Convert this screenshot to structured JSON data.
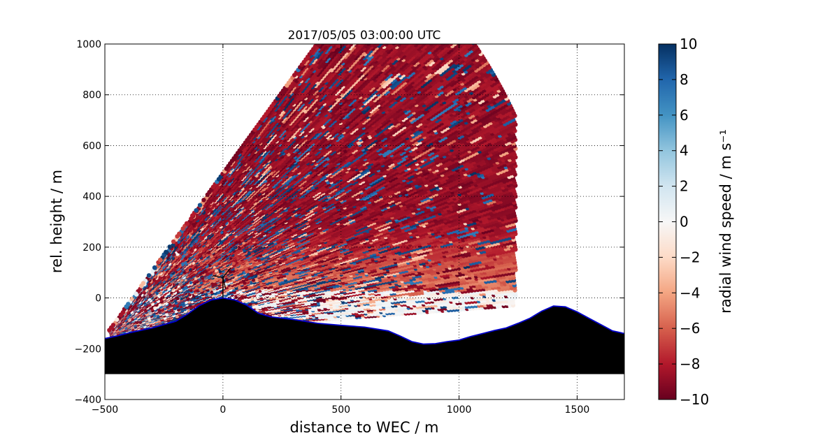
{
  "chart_data": {
    "type": "scatter",
    "title": "2017/05/05 03:00:00 UTC",
    "xlabel": "distance to WEC / m",
    "ylabel": "rel. height / m",
    "xlim": [
      -500,
      1700
    ],
    "ylim": [
      -400,
      1000
    ],
    "xticks": [
      {
        "value": -500,
        "label": "−500"
      },
      {
        "value": 0,
        "label": "0"
      },
      {
        "value": 500,
        "label": "500"
      },
      {
        "value": 1000,
        "label": "1000"
      },
      {
        "value": 1500,
        "label": "1500"
      }
    ],
    "yticks": [
      {
        "value": -400,
        "label": "−400"
      },
      {
        "value": -200,
        "label": "−200"
      },
      {
        "value": 0,
        "label": "0"
      },
      {
        "value": 200,
        "label": "200"
      },
      {
        "value": 400,
        "label": "400"
      },
      {
        "value": 600,
        "label": "600"
      },
      {
        "value": 800,
        "label": "800"
      },
      {
        "value": 1000,
        "label": "1000"
      }
    ],
    "grid": true,
    "scan": {
      "origin": [
        -500,
        -150
      ],
      "max_range": 1950,
      "elevation_deg": [
        4,
        52
      ]
    },
    "terrain_profile": [
      [
        -500,
        -160
      ],
      [
        -450,
        -150
      ],
      [
        -400,
        -138
      ],
      [
        -350,
        -128
      ],
      [
        -300,
        -118
      ],
      [
        -250,
        -105
      ],
      [
        -200,
        -92
      ],
      [
        -150,
        -64
      ],
      [
        -100,
        -30
      ],
      [
        -50,
        -8
      ],
      [
        0,
        0
      ],
      [
        50,
        -8
      ],
      [
        100,
        -28
      ],
      [
        150,
        -60
      ],
      [
        200,
        -74
      ],
      [
        300,
        -85
      ],
      [
        400,
        -100
      ],
      [
        500,
        -108
      ],
      [
        600,
        -115
      ],
      [
        700,
        -130
      ],
      [
        750,
        -150
      ],
      [
        800,
        -172
      ],
      [
        850,
        -182
      ],
      [
        900,
        -180
      ],
      [
        950,
        -172
      ],
      [
        1000,
        -166
      ],
      [
        1050,
        -152
      ],
      [
        1100,
        -140
      ],
      [
        1150,
        -128
      ],
      [
        1200,
        -118
      ],
      [
        1250,
        -100
      ],
      [
        1300,
        -80
      ],
      [
        1350,
        -52
      ],
      [
        1400,
        -32
      ],
      [
        1450,
        -35
      ],
      [
        1500,
        -55
      ],
      [
        1550,
        -80
      ],
      [
        1600,
        -105
      ],
      [
        1650,
        -130
      ],
      [
        1700,
        -140
      ]
    ],
    "terrain_bottom": -300,
    "terrain_color": "#000000",
    "terrain_outline_color": "#0000cc",
    "turbine": {
      "x": 0,
      "hub_height": 80
    },
    "colorbar": {
      "label": "radial wind speed / m s⁻¹",
      "range": [
        -10,
        10
      ],
      "ticks": [
        {
          "value": 10,
          "label": "10"
        },
        {
          "value": 8,
          "label": "8"
        },
        {
          "value": 6,
          "label": "6"
        },
        {
          "value": 4,
          "label": "4"
        },
        {
          "value": 2,
          "label": "2"
        },
        {
          "value": 0,
          "label": "0"
        },
        {
          "value": -2,
          "label": "−2"
        },
        {
          "value": -4,
          "label": "−4"
        },
        {
          "value": -6,
          "label": "−6"
        },
        {
          "value": -8,
          "label": "−8"
        },
        {
          "value": -10,
          "label": "−10"
        }
      ],
      "colors": [
        "#67001f",
        "#b2182b",
        "#d6604d",
        "#f4a582",
        "#fddbc7",
        "#f7f7f7",
        "#d1e5f0",
        "#92c5de",
        "#4393c3",
        "#2166ac",
        "#053061"
      ]
    }
  }
}
